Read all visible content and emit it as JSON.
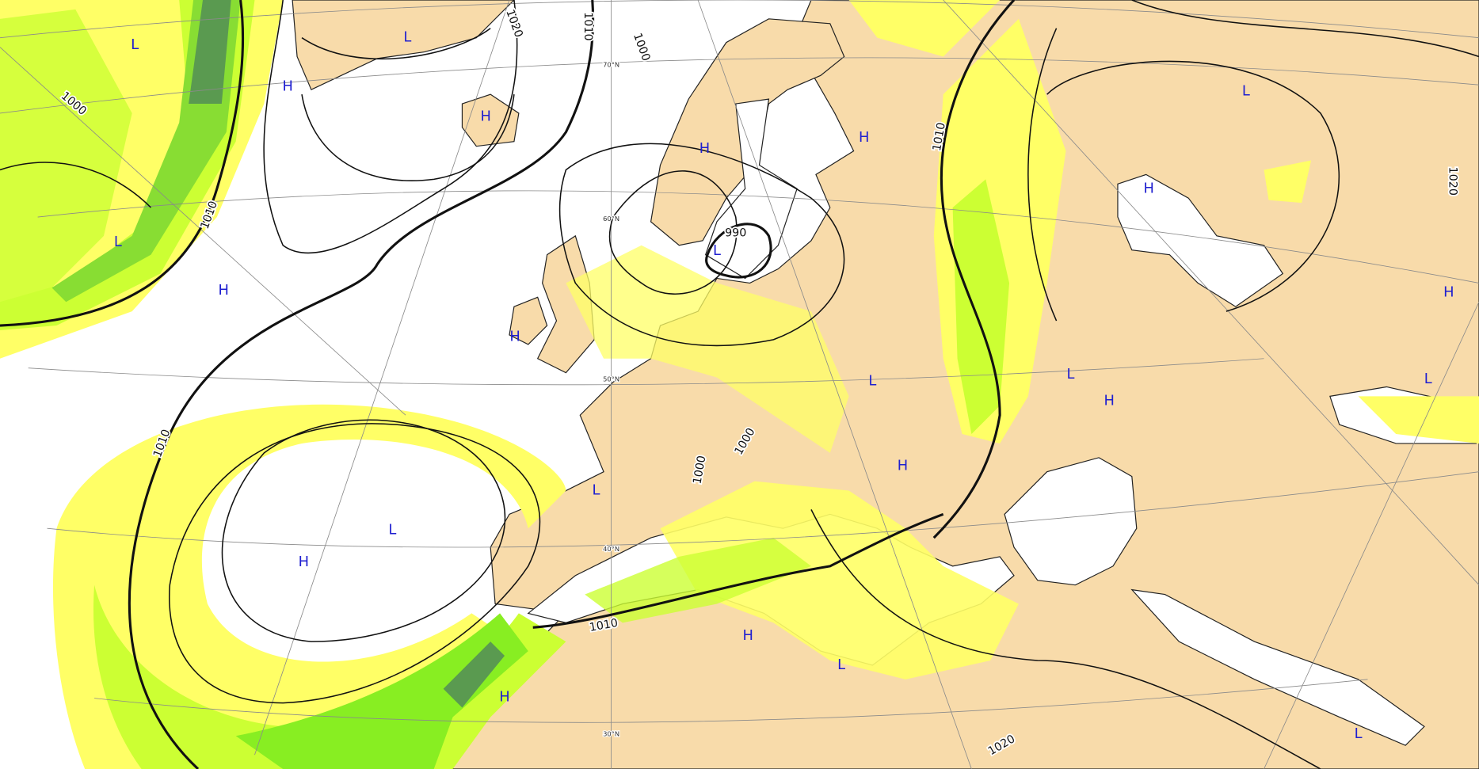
{
  "isobar_labels": [
    "1000",
    "1010",
    "1010",
    "1020",
    "1010",
    "1000",
    "990",
    "1010",
    "1020",
    "1000",
    "1000",
    "1010",
    "1020"
  ],
  "pressure_centers": [
    "L",
    "L",
    "H",
    "H",
    "L",
    "H",
    "H",
    "H",
    "H",
    "L",
    "L",
    "H",
    "H",
    "L",
    "L",
    "H",
    "L",
    "H",
    "L",
    "L",
    "H",
    "H",
    "L",
    "H",
    "L"
  ],
  "latitude_labels": [
    "70°N",
    "60°N",
    "50°N",
    "40°N",
    "30°N"
  ]
}
